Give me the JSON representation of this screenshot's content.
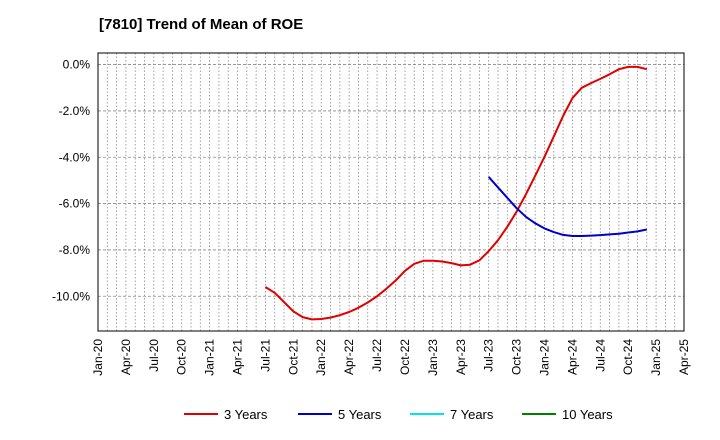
{
  "chart_data": {
    "type": "line",
    "title": "[7810]  Trend of Mean of ROE",
    "xlabel": "",
    "ylabel": "",
    "x_ticks": [
      "Jan-20",
      "Apr-20",
      "Jul-20",
      "Oct-20",
      "Jan-21",
      "Apr-21",
      "Jul-21",
      "Oct-21",
      "Jan-22",
      "Apr-22",
      "Jul-22",
      "Oct-22",
      "Jan-23",
      "Apr-23",
      "Jul-23",
      "Oct-23",
      "Jan-24",
      "Apr-24",
      "Jul-24",
      "Oct-24",
      "Jan-25",
      "Apr-25"
    ],
    "y_ticks": [
      "0.0%",
      "-2.0%",
      "-4.0%",
      "-6.0%",
      "-8.0%",
      "-10.0%"
    ],
    "y_tick_values": [
      0,
      -2,
      -4,
      -6,
      -8,
      -10
    ],
    "ylim": [
      -11.5,
      0.5
    ],
    "grid": true,
    "legend_position": "bottom",
    "series": [
      {
        "name": "3 Years",
        "color": "#e00000",
        "points": [
          [
            "Jul-21",
            -9.6
          ],
          [
            "Aug-21",
            -9.85
          ],
          [
            "Sep-21",
            -10.25
          ],
          [
            "Oct-21",
            -10.65
          ],
          [
            "Nov-21",
            -10.9
          ],
          [
            "Dec-21",
            -11.0
          ],
          [
            "Jan-22",
            -10.98
          ],
          [
            "Feb-22",
            -10.92
          ],
          [
            "Mar-22",
            -10.82
          ],
          [
            "Apr-22",
            -10.68
          ],
          [
            "May-22",
            -10.5
          ],
          [
            "Jun-22",
            -10.27
          ],
          [
            "Jul-22",
            -10.0
          ],
          [
            "Aug-22",
            -9.68
          ],
          [
            "Sep-22",
            -9.32
          ],
          [
            "Oct-22",
            -8.9
          ],
          [
            "Nov-22",
            -8.6
          ],
          [
            "Dec-22",
            -8.47
          ],
          [
            "Jan-23",
            -8.47
          ],
          [
            "Feb-23",
            -8.5
          ],
          [
            "Mar-23",
            -8.57
          ],
          [
            "Apr-23",
            -8.67
          ],
          [
            "May-23",
            -8.64
          ],
          [
            "Jun-23",
            -8.45
          ],
          [
            "Jul-23",
            -8.05
          ],
          [
            "Aug-23",
            -7.58
          ],
          [
            "Sep-23",
            -7.0
          ],
          [
            "Oct-23",
            -6.35
          ],
          [
            "Nov-23",
            -5.6
          ],
          [
            "Dec-23",
            -4.8
          ],
          [
            "Jan-24",
            -3.98
          ],
          [
            "Feb-24",
            -3.1
          ],
          [
            "Mar-24",
            -2.22
          ],
          [
            "Apr-24",
            -1.45
          ],
          [
            "May-24",
            -1.0
          ],
          [
            "Jun-24",
            -0.8
          ],
          [
            "Jul-24",
            -0.62
          ],
          [
            "Aug-24",
            -0.42
          ],
          [
            "Sep-24",
            -0.2
          ],
          [
            "Oct-24",
            -0.1
          ],
          [
            "Nov-24",
            -0.1
          ],
          [
            "Dec-24",
            -0.2
          ]
        ]
      },
      {
        "name": "5 Years",
        "color": "#0000cc",
        "points": [
          [
            "Jul-23",
            -4.85
          ],
          [
            "Aug-23",
            -5.3
          ],
          [
            "Sep-23",
            -5.75
          ],
          [
            "Oct-23",
            -6.2
          ],
          [
            "Nov-23",
            -6.57
          ],
          [
            "Dec-23",
            -6.85
          ],
          [
            "Jan-24",
            -7.07
          ],
          [
            "Feb-24",
            -7.23
          ],
          [
            "Mar-24",
            -7.35
          ],
          [
            "Apr-24",
            -7.4
          ],
          [
            "May-24",
            -7.4
          ],
          [
            "Jun-24",
            -7.38
          ],
          [
            "Jul-24",
            -7.36
          ],
          [
            "Aug-24",
            -7.33
          ],
          [
            "Sep-24",
            -7.3
          ],
          [
            "Oct-24",
            -7.25
          ],
          [
            "Nov-24",
            -7.2
          ],
          [
            "Dec-24",
            -7.12
          ]
        ]
      },
      {
        "name": "7 Years",
        "color": "#00e5e5",
        "points": []
      },
      {
        "name": "10 Years",
        "color": "#008000",
        "points": []
      }
    ]
  }
}
